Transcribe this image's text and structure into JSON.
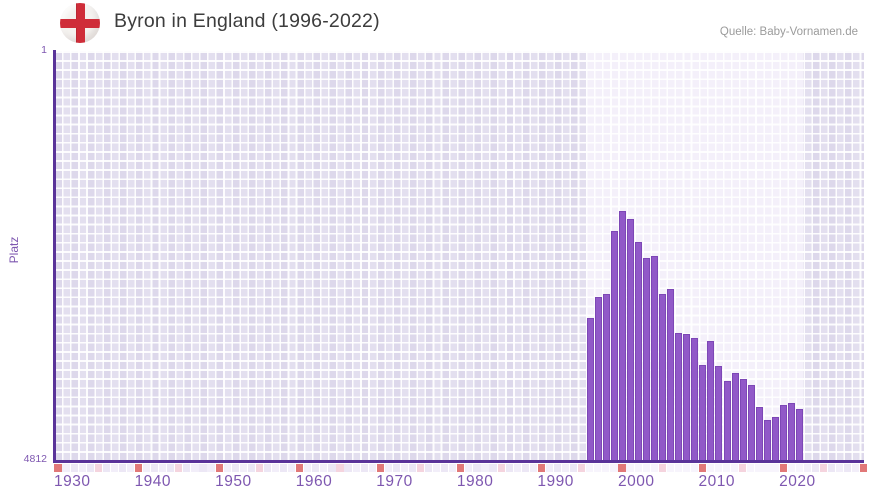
{
  "header": {
    "title": "Byron in England (1996-2022)",
    "source": "Quelle: Baby-Vornamen.de",
    "flag": "england-flag"
  },
  "chart_data": {
    "type": "bar",
    "title": "Byron in England (1996-2022)",
    "ylabel": "Platz",
    "xlabel": "",
    "legend": false,
    "grid": true,
    "y_axis": {
      "top_label": "1",
      "bottom_label": "4812",
      "min": 1,
      "max": 4812,
      "inverted": true
    },
    "x_axis": {
      "start_year": 1930,
      "end_year": 2030,
      "tick_years": [
        1930,
        1940,
        1950,
        1960,
        1970,
        1980,
        1990,
        2000,
        2010,
        2020
      ],
      "tick_labels": [
        "1930",
        "1940",
        "1950",
        "1960",
        "1970",
        "1980",
        "1990",
        "2000",
        "2010",
        "2020"
      ]
    },
    "highlight_range": [
      1996,
      2022
    ],
    "series": [
      {
        "name": "Platz",
        "x": [
          1996,
          1997,
          1998,
          1999,
          2000,
          2001,
          2002,
          2003,
          2004,
          2005,
          2006,
          2007,
          2008,
          2009,
          2010,
          2011,
          2012,
          2013,
          2014,
          2015,
          2016,
          2017,
          2018,
          2019,
          2020,
          2021,
          2022
        ],
        "values": [
          3140,
          2895,
          2860,
          2120,
          1885,
          1975,
          2250,
          2435,
          2410,
          2860,
          2800,
          3315,
          3330,
          3375,
          3695,
          3410,
          3705,
          3885,
          3790,
          3855,
          3930,
          4190,
          4340,
          4305,
          4160,
          4140,
          4210
        ]
      }
    ],
    "colors": {
      "bar_fill": "#9159c8",
      "bar_edge": "#7d47b6",
      "axis_line": "#5a3399",
      "grid_cell": "#e3dfef",
      "grid_cell_highlight": "#f4f0fa",
      "tick_text": "#7e57b0",
      "title_text": "#3d3d3d",
      "source_text": "#9b9b9b",
      "decade_marker": "#e17878",
      "half_decade_marker": "#f5d4de",
      "marker_cell_even": "#ece7f5",
      "marker_cell_odd": "#f2eef9",
      "marker_cell_highlight": "#f7f4fc",
      "flag_red": "#cf2d39",
      "flag_background": "#f4f2ef"
    }
  }
}
